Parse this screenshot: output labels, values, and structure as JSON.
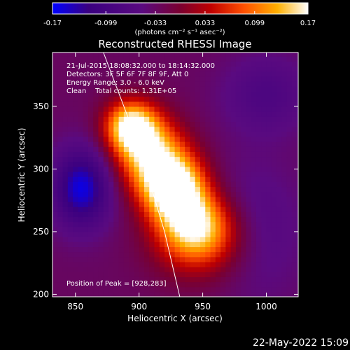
{
  "chart_data": {
    "type": "heatmap",
    "title": "Reconstructed RHESSI Image",
    "xlabel": "Heliocentric X (arcsec)",
    "ylabel": "Heliocentric Y (arcsec)",
    "xlim": [
      832,
      1025
    ],
    "ylim": [
      198,
      393
    ],
    "x_ticks": [
      850,
      900,
      950,
      1000
    ],
    "y_ticks": [
      200,
      250,
      300,
      350
    ],
    "colorbar": {
      "min": -0.17,
      "max": 0.17,
      "tick_values": [
        -0.17,
        -0.099,
        -0.033,
        0.033,
        0.099,
        0.17
      ],
      "tick_labels": [
        "-0.17",
        "-0.099",
        "-0.033",
        "0.033",
        "0.099",
        "0.17"
      ],
      "unit_label": "(photons cm⁻² s⁻¹ asec⁻²)",
      "colormap": [
        "#0000ff",
        "#3a0080",
        "#5a0a80",
        "#7a0030",
        "#c00000",
        "#ff5000",
        "#ffb000",
        "#ffffff"
      ]
    },
    "annotations": [
      "21-Jul-2015 18:08:32.000 to 18:14:32.000",
      "Detectors: 3F 5F 6F 7F 8F 9F, Att 0",
      "Energy Range: 3.0 - 6.0 keV",
      "Clean    Total counts: 1.31E+05"
    ],
    "peak_label": "Position of Peak = [928,283]",
    "peak": [
      928,
      283
    ],
    "sources": [
      {
        "x": 893,
        "y": 335,
        "sx": 14,
        "sy": 14,
        "amp": 0.17
      },
      {
        "x": 905,
        "y": 318,
        "sx": 18,
        "sy": 20,
        "amp": 0.13
      },
      {
        "x": 928,
        "y": 283,
        "sx": 17,
        "sy": 17,
        "amp": 0.18
      },
      {
        "x": 920,
        "y": 300,
        "sx": 20,
        "sy": 20,
        "amp": 0.1
      },
      {
        "x": 944,
        "y": 256,
        "sx": 20,
        "sy": 18,
        "amp": 0.15
      },
      {
        "x": 950,
        "y": 240,
        "sx": 26,
        "sy": 22,
        "amp": 0.08
      },
      {
        "x": 855,
        "y": 285,
        "sx": 16,
        "sy": 22,
        "amp": -0.13
      },
      {
        "x": 990,
        "y": 250,
        "sx": 28,
        "sy": 40,
        "amp": -0.04
      },
      {
        "x": 1000,
        "y": 360,
        "sx": 24,
        "sy": 22,
        "amp": -0.05
      }
    ],
    "background_level": -0.03,
    "limb": [
      [
        872,
        393
      ],
      [
        900,
        318
      ],
      [
        920,
        250
      ],
      [
        932,
        198
      ]
    ],
    "grid": false
  },
  "timestamp": "22-May-2022 15:09"
}
